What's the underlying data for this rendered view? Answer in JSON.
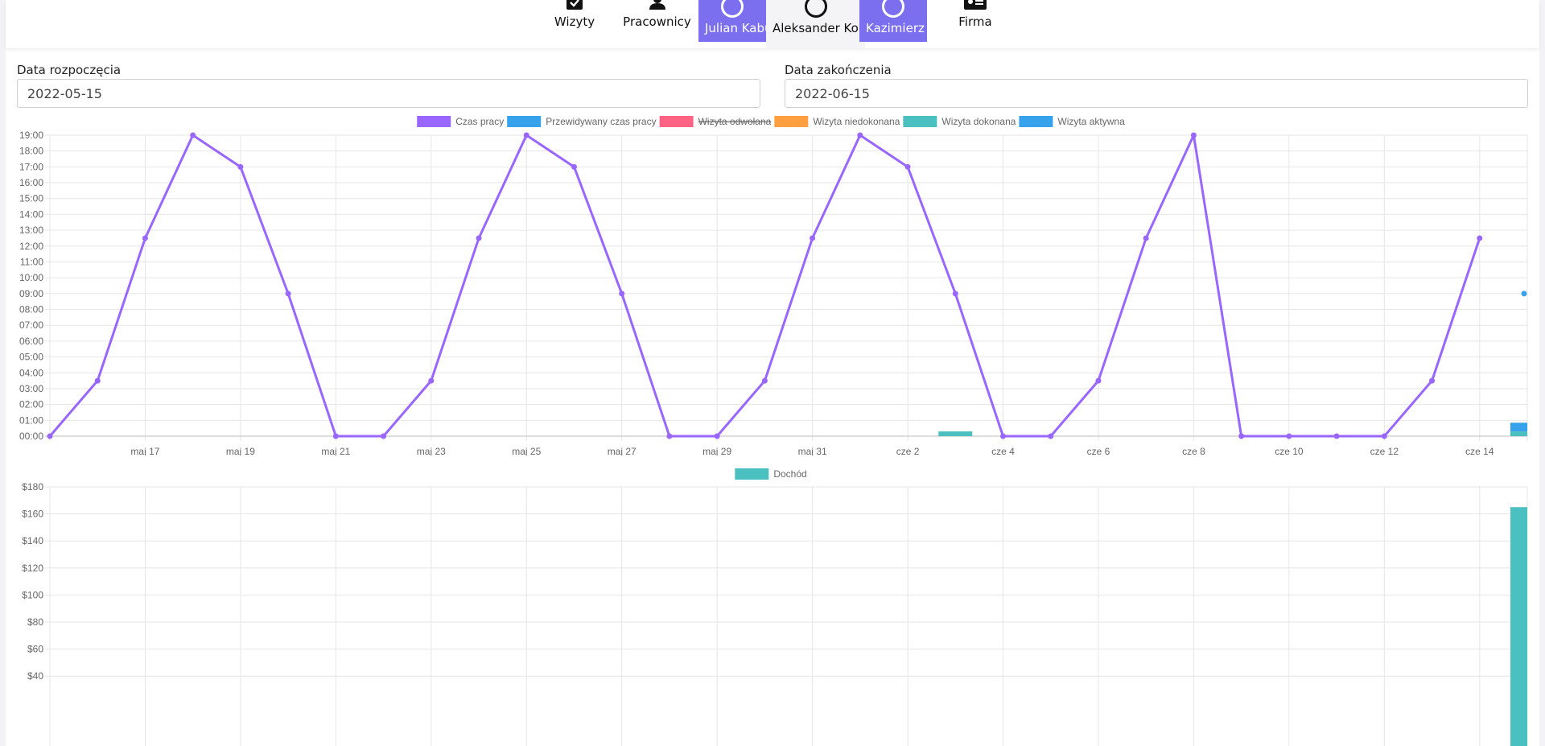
{
  "nav": {
    "items": [
      {
        "label": "Wizyty",
        "icon": "checkbox-calendar-icon"
      },
      {
        "label": "Pracownicy",
        "icon": "user-icon"
      },
      {
        "label": "Firma",
        "icon": "id-card-icon"
      }
    ],
    "workers": [
      {
        "label": "Julian Kabu",
        "active": true
      },
      {
        "label": "Aleksander Ko",
        "active": false
      },
      {
        "label": "Kazimierz Ko",
        "active": true
      }
    ]
  },
  "filters": {
    "start_label": "Data rozpoczęcia",
    "start_value": "2022-05-15",
    "end_label": "Data zakończenia",
    "end_value": "2022-06-15"
  },
  "colors": {
    "accent": "#7b6ff0",
    "work_time": "#9966ff",
    "predicted": "#36a2eb",
    "cancelled": "#ff6384",
    "not_done": "#ff9f40",
    "done": "#4bc0c0",
    "active": "#36a2eb",
    "income": "#4bc0c0"
  },
  "chart_data": [
    {
      "type": "line",
      "legend": [
        {
          "label": "Czas pracy",
          "color": "#9966ff",
          "hidden": false
        },
        {
          "label": "Przewidywany czas pracy",
          "color": "#36a2eb",
          "hidden": false
        },
        {
          "label": "Wizyta odwołana",
          "color": "#ff6384",
          "hidden": true
        },
        {
          "label": "Wizyta niedokonana",
          "color": "#ff9f40",
          "hidden": false
        },
        {
          "label": "Wizyta dokonana",
          "color": "#4bc0c0",
          "hidden": false
        },
        {
          "label": "Wizyta aktywna",
          "color": "#36a2eb",
          "hidden": false
        }
      ],
      "y_ticks": [
        "00:00",
        "01:00",
        "02:00",
        "03:00",
        "04:00",
        "05:00",
        "06:00",
        "07:00",
        "08:00",
        "09:00",
        "10:00",
        "11:00",
        "12:00",
        "13:00",
        "14:00",
        "15:00",
        "16:00",
        "17:00",
        "18:00",
        "19:00"
      ],
      "ylim": [
        0,
        19
      ],
      "x_ticks": [
        "maj 17",
        "maj 19",
        "maj 21",
        "maj 23",
        "maj 25",
        "maj 27",
        "maj 29",
        "maj 31",
        "cze 2",
        "cze 4",
        "cze 6",
        "cze 8",
        "cze 10",
        "cze 12",
        "cze 14"
      ],
      "x_range": [
        "2022-05-15",
        "2022-06-15"
      ],
      "grid": true,
      "legend_position": "top",
      "series": [
        {
          "name": "Czas pracy",
          "x": [
            "2022-05-15",
            "2022-05-16",
            "2022-05-17",
            "2022-05-18",
            "2022-05-19",
            "2022-05-20",
            "2022-05-21",
            "2022-05-22",
            "2022-05-23",
            "2022-05-24",
            "2022-05-25",
            "2022-05-26",
            "2022-05-27",
            "2022-05-28",
            "2022-05-29",
            "2022-05-30",
            "2022-05-31",
            "2022-06-01",
            "2022-06-02",
            "2022-06-03",
            "2022-06-04",
            "2022-06-05",
            "2022-06-06",
            "2022-06-07",
            "2022-06-08",
            "2022-06-09",
            "2022-06-10",
            "2022-06-11",
            "2022-06-12",
            "2022-06-13",
            "2022-06-14"
          ],
          "values": [
            0,
            3.5,
            12.5,
            19,
            17,
            9,
            0,
            0,
            3.5,
            12.5,
            19,
            17,
            9,
            0,
            0,
            3.5,
            12.5,
            19,
            17,
            9,
            0,
            0,
            3.5,
            12.5,
            19,
            0,
            0,
            0,
            0,
            3.5,
            12.5
          ]
        },
        {
          "name": "Przewidywany czas pracy",
          "x": [
            "2022-06-15"
          ],
          "values": [
            9
          ]
        },
        {
          "name": "Wizyta dokonana",
          "bars": [
            {
              "x": "2022-06-03",
              "value": 0.3
            },
            {
              "x": "2022-06-15",
              "value": 0.3
            }
          ]
        },
        {
          "name": "Wizyta aktywna",
          "bars": [
            {
              "x": "2022-06-15",
              "value": 0.55,
              "base": 0.3
            }
          ]
        }
      ]
    },
    {
      "type": "bar",
      "legend": [
        {
          "label": "Dochód",
          "color": "#4bc0c0"
        }
      ],
      "y_ticks": [
        "$40",
        "$60",
        "$80",
        "$100",
        "$120",
        "$140",
        "$160",
        "$180"
      ],
      "ylim": [
        40,
        180
      ],
      "grid": true,
      "legend_position": "top",
      "series": [
        {
          "name": "Dochód",
          "bars": [
            {
              "x": "2022-06-15",
              "value": 165
            }
          ]
        }
      ]
    }
  ]
}
